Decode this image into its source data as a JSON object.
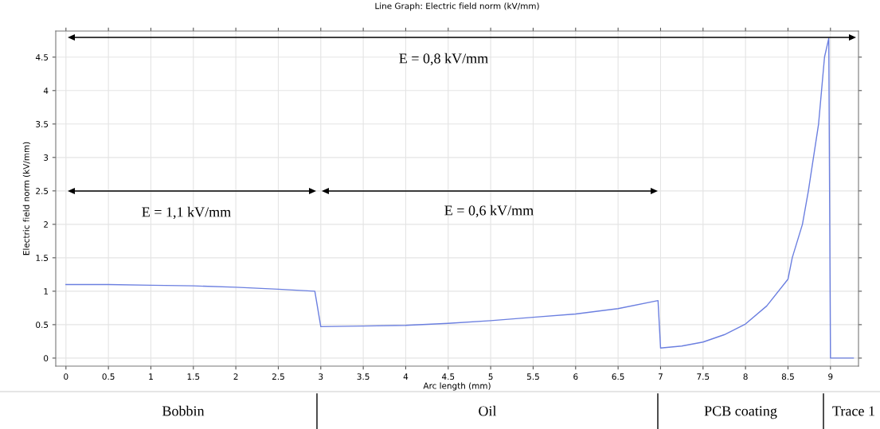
{
  "chart_data": {
    "type": "line",
    "title": "Line Graph: Electric field norm (kV/mm)",
    "xlabel": "Arc length (mm)",
    "ylabel": "Electric field norm (kV/mm)",
    "series": [
      {
        "color": "#6b7fe0",
        "x": [
          0,
          0.5,
          1,
          1.5,
          2,
          2.5,
          2.93,
          3.0,
          3.5,
          4,
          4.5,
          5,
          5.5,
          6,
          6.5,
          6.97,
          7.0,
          7.25,
          7.5,
          7.75,
          8,
          8.25,
          8.5,
          8.55,
          8.67,
          8.74,
          8.86,
          8.93,
          8.98,
          9.0,
          9.27
        ],
        "values": [
          1.1,
          1.1,
          1.09,
          1.08,
          1.06,
          1.03,
          1.0,
          0.47,
          0.48,
          0.49,
          0.52,
          0.56,
          0.61,
          0.66,
          0.74,
          0.86,
          0.15,
          0.18,
          0.24,
          0.35,
          0.51,
          0.78,
          1.18,
          1.5,
          2.0,
          2.5,
          3.5,
          4.5,
          4.78,
          0,
          0
        ]
      }
    ],
    "xlim": [
      -0.12,
      9.33
    ],
    "ylim": [
      -0.12,
      4.89
    ],
    "xticks": [
      0,
      0.5,
      1,
      1.5,
      2,
      2.5,
      3,
      3.5,
      4,
      4.5,
      5,
      5.5,
      6,
      6.5,
      7,
      7.5,
      8,
      8.5,
      9
    ],
    "yticks": [
      0,
      0.5,
      1,
      1.5,
      2,
      2.5,
      3,
      3.5,
      4,
      4.5
    ],
    "grid": true,
    "annotations": [
      "E = 0,8 kV/mm",
      "E = 1,1 kV/mm",
      "E = 0,6 kV/mm",
      "Bobbin",
      "Oil",
      "PCB coating",
      "Trace 1"
    ]
  }
}
